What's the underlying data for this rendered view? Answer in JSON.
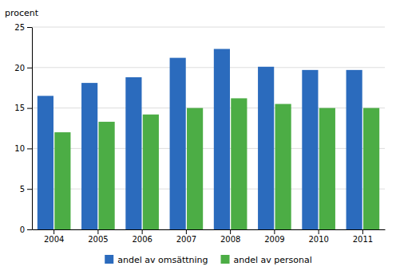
{
  "chart_data": {
    "type": "bar",
    "categories": [
      "2004",
      "2005",
      "2006",
      "2007",
      "2008",
      "2009",
      "2010",
      "2011"
    ],
    "series": [
      {
        "name": "andel av omsättning",
        "color": "#2B6BBD",
        "values": [
          16.5,
          18.1,
          18.8,
          21.2,
          22.3,
          20.1,
          19.7,
          19.7
        ]
      },
      {
        "name": "andel av personal",
        "color": "#4CAD45",
        "values": [
          12.0,
          13.3,
          14.2,
          15.0,
          16.2,
          15.5,
          15.0,
          15.0
        ]
      }
    ],
    "ylabel": "procent",
    "ylim": [
      0,
      25
    ],
    "yticks": [
      0,
      5,
      10,
      15,
      20,
      25
    ],
    "grid": true,
    "legend": "bottom"
  }
}
